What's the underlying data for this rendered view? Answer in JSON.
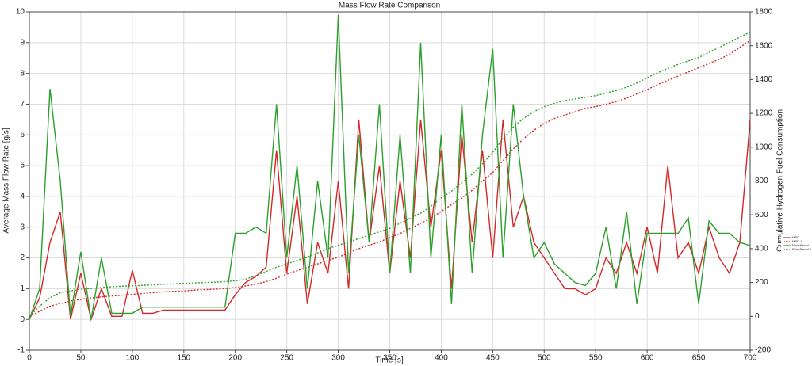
{
  "chart_data": {
    "type": "line",
    "title": "Mass Flow Rate Comparison",
    "xlabel": "Time [s]",
    "ylabel": "Average Mass Flow Rate [g/s]",
    "y2label": "Cumulative Hydrogen Fuel Consumption",
    "x": [
      0,
      10,
      20,
      30,
      40,
      50,
      60,
      70,
      80,
      90,
      100,
      110,
      120,
      130,
      140,
      150,
      160,
      170,
      180,
      190,
      200,
      210,
      220,
      230,
      240,
      250,
      260,
      270,
      280,
      290,
      300,
      310,
      320,
      330,
      340,
      350,
      360,
      370,
      380,
      390,
      400,
      410,
      420,
      430,
      440,
      450,
      460,
      470,
      480,
      490,
      500,
      510,
      520,
      530,
      540,
      550,
      560,
      570,
      580,
      590,
      600,
      610,
      620,
      630,
      640,
      650,
      660,
      670,
      680,
      690,
      700
    ],
    "series": [
      {
        "name": "MPC",
        "color": "#d62728",
        "dash": "solid",
        "axis": "y",
        "values": [
          0,
          0.7,
          2.5,
          3.5,
          0,
          1.5,
          0,
          1.0,
          0.1,
          0.1,
          1.6,
          0.2,
          0.2,
          0.3,
          0.3,
          0.3,
          0.3,
          0.3,
          0.3,
          0.3,
          0.8,
          1.2,
          1.4,
          1.7,
          5.5,
          1.5,
          4,
          0.5,
          2.5,
          1.5,
          4.5,
          1.0,
          6.5,
          2.5,
          5,
          1.5,
          4.5,
          2,
          6.5,
          3,
          5.5,
          1.0,
          6,
          2.5,
          5.5,
          2,
          6.5,
          3,
          4,
          2.5,
          2,
          1.5,
          1,
          1,
          0.8,
          1,
          2,
          1.5,
          2.5,
          1.5,
          3,
          1.5,
          5,
          2,
          2.5,
          1.5,
          3,
          2,
          1.5,
          2.5,
          6.5
        ]
      },
      {
        "name": "MPC-1",
        "color": "#d62728",
        "dash": "dotted",
        "axis": "y2",
        "values": [
          0,
          30,
          60,
          75,
          90,
          100,
          108,
          115,
          120,
          125,
          130,
          135,
          140,
          145,
          148,
          150,
          155,
          158,
          160,
          165,
          170,
          180,
          190,
          205,
          225,
          250,
          270,
          290,
          310,
          330,
          350,
          375,
          400,
          420,
          440,
          465,
          490,
          520,
          550,
          580,
          620,
          660,
          700,
          745,
          800,
          850,
          920,
          990,
          1050,
          1100,
          1140,
          1170,
          1190,
          1210,
          1230,
          1240,
          1255,
          1270,
          1290,
          1315,
          1340,
          1370,
          1395,
          1420,
          1445,
          1470,
          1495,
          1520,
          1550,
          1590,
          1630
        ]
      },
      {
        "name": "Rule-Based",
        "color": "#2ca02c",
        "dash": "solid",
        "axis": "y",
        "values": [
          0,
          1.0,
          7.5,
          4.5,
          0.1,
          2.2,
          0,
          2,
          0.2,
          0.2,
          0.2,
          0.4,
          0.4,
          0.4,
          0.4,
          0.4,
          0.4,
          0.4,
          0.4,
          0.4,
          2.8,
          2.8,
          3,
          2.8,
          7,
          2,
          5,
          1,
          4.5,
          2,
          9.9,
          1.5,
          6,
          2.5,
          7,
          1.5,
          6,
          1.5,
          9,
          2,
          6,
          0.5,
          7,
          1.5,
          6,
          8.8,
          2,
          7,
          4,
          2,
          2.5,
          1.8,
          1.5,
          1.2,
          1.1,
          1.5,
          3,
          1,
          3.5,
          0.5,
          2.8,
          2.8,
          2.8,
          2.8,
          3.3,
          0.5,
          3.2,
          2.8,
          2.8,
          2.5,
          2.4
        ]
      },
      {
        "name": "Rule-Based-1",
        "color": "#2ca02c",
        "dash": "dotted",
        "axis": "y2",
        "values": [
          0,
          60,
          110,
          140,
          150,
          160,
          165,
          170,
          175,
          178,
          180,
          183,
          186,
          190,
          192,
          195,
          198,
          200,
          202,
          205,
          210,
          220,
          240,
          265,
          290,
          310,
          330,
          350,
          375,
          400,
          420,
          440,
          460,
          480,
          500,
          520,
          550,
          580,
          610,
          650,
          700,
          740,
          790,
          840,
          900,
          970,
          1050,
          1120,
          1170,
          1210,
          1240,
          1260,
          1275,
          1285,
          1295,
          1305,
          1320,
          1335,
          1355,
          1380,
          1410,
          1440,
          1465,
          1490,
          1510,
          1530,
          1560,
          1590,
          1620,
          1650,
          1680
        ]
      }
    ],
    "xlim": [
      0,
      700
    ],
    "xticks": [
      0,
      50,
      100,
      150,
      200,
      250,
      300,
      350,
      400,
      450,
      500,
      550,
      600,
      650,
      700
    ],
    "ylim": [
      -1,
      10
    ],
    "yticks": [
      -1,
      0,
      1,
      2,
      3,
      4,
      5,
      6,
      7,
      8,
      9,
      10
    ],
    "y2lim": [
      -200,
      1800
    ],
    "y2ticks": [
      -200,
      0,
      200,
      400,
      600,
      800,
      1000,
      1200,
      1400,
      1600,
      1800
    ],
    "grid": true,
    "legend": "right"
  }
}
